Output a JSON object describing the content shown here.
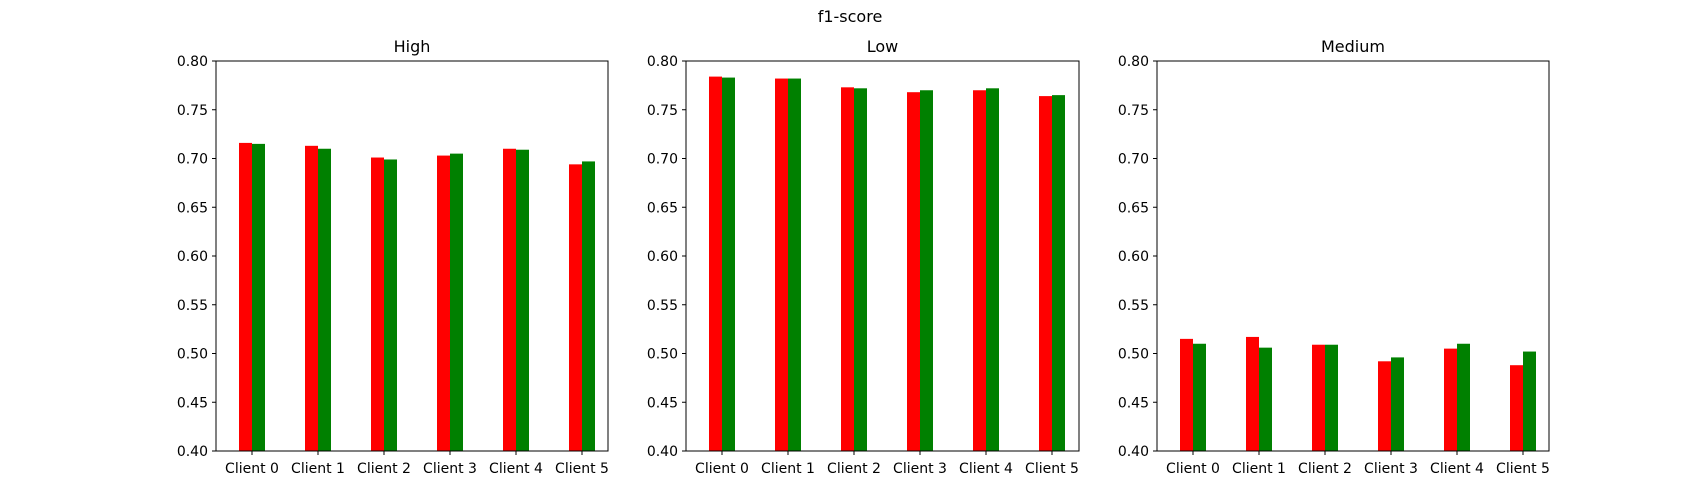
{
  "figure": {
    "suptitle": "f1-score"
  },
  "colors": {
    "series_a": "#ff0000",
    "series_b": "#008000",
    "axes": "#000000",
    "background": "#ffffff"
  },
  "chart_data": [
    {
      "type": "bar",
      "title": "High",
      "xlabel": "",
      "ylabel": "",
      "categories": [
        "Client 0",
        "Client 1",
        "Client 2",
        "Client 3",
        "Client 4",
        "Client 5"
      ],
      "series": [
        {
          "color": "#ff0000",
          "values": [
            0.716,
            0.713,
            0.701,
            0.703,
            0.71,
            0.694
          ]
        },
        {
          "color": "#008000",
          "values": [
            0.715,
            0.71,
            0.699,
            0.705,
            0.709,
            0.697
          ]
        }
      ],
      "ylim": [
        0.4,
        0.8
      ],
      "yticks": [
        "0.40",
        "0.45",
        "0.50",
        "0.55",
        "0.60",
        "0.65",
        "0.70",
        "0.75",
        "0.80"
      ],
      "grid": false,
      "legend": "none"
    },
    {
      "type": "bar",
      "title": "Low",
      "xlabel": "",
      "ylabel": "",
      "categories": [
        "Client 0",
        "Client 1",
        "Client 2",
        "Client 3",
        "Client 4",
        "Client 5"
      ],
      "series": [
        {
          "color": "#ff0000",
          "values": [
            0.784,
            0.782,
            0.773,
            0.768,
            0.77,
            0.764
          ]
        },
        {
          "color": "#008000",
          "values": [
            0.783,
            0.782,
            0.772,
            0.77,
            0.772,
            0.765
          ]
        }
      ],
      "ylim": [
        0.4,
        0.8
      ],
      "yticks": [
        "0.40",
        "0.45",
        "0.50",
        "0.55",
        "0.60",
        "0.65",
        "0.70",
        "0.75",
        "0.80"
      ],
      "grid": false,
      "legend": "none"
    },
    {
      "type": "bar",
      "title": "Medium",
      "xlabel": "",
      "ylabel": "",
      "categories": [
        "Client 0",
        "Client 1",
        "Client 2",
        "Client 3",
        "Client 4",
        "Client 5"
      ],
      "series": [
        {
          "color": "#ff0000",
          "values": [
            0.515,
            0.517,
            0.509,
            0.492,
            0.505,
            0.488
          ]
        },
        {
          "color": "#008000",
          "values": [
            0.51,
            0.506,
            0.509,
            0.496,
            0.51,
            0.502
          ]
        }
      ],
      "ylim": [
        0.4,
        0.8
      ],
      "yticks": [
        "0.40",
        "0.45",
        "0.50",
        "0.55",
        "0.60",
        "0.65",
        "0.70",
        "0.75",
        "0.80"
      ],
      "grid": false,
      "legend": "none"
    }
  ]
}
